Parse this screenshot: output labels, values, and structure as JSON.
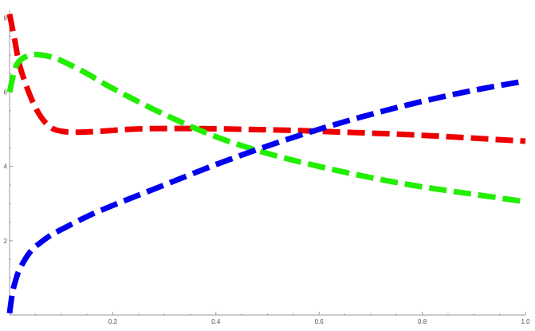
{
  "chart_data": {
    "type": "line",
    "title": "",
    "xlabel": "",
    "ylabel": "",
    "xlim": [
      0,
      1
    ],
    "ylim": [
      0,
      8.2
    ],
    "grid": false,
    "legend": "none",
    "x_ticks": [
      {
        "value": 0.2,
        "label": "0.2"
      },
      {
        "value": 0.4,
        "label": "0.4"
      },
      {
        "value": 0.6,
        "label": "0.6"
      },
      {
        "value": 0.8,
        "label": "0.8"
      },
      {
        "value": 1.0,
        "label": "1.0"
      }
    ],
    "y_ticks": [
      {
        "value": 2,
        "label": "2"
      },
      {
        "value": 4,
        "label": "4"
      },
      {
        "value": 6,
        "label": "6"
      },
      {
        "value": 8,
        "label": "8"
      }
    ],
    "series": [
      {
        "color": "#ee0000",
        "style": "dashed",
        "x": [
          0.0,
          0.01,
          0.02,
          0.04,
          0.06,
          0.08,
          0.1,
          0.13,
          0.18,
          0.25,
          0.35,
          0.45,
          0.55,
          0.65,
          0.75,
          0.85,
          0.95,
          1.0
        ],
        "y": [
          8.1,
          7.4,
          6.7,
          5.9,
          5.35,
          5.05,
          4.95,
          4.92,
          4.95,
          5.01,
          5.02,
          5.0,
          4.97,
          4.92,
          4.87,
          4.8,
          4.72,
          4.68
        ]
      },
      {
        "color": "#22ee00",
        "style": "dashed",
        "x": [
          0.0,
          0.01,
          0.02,
          0.04,
          0.06,
          0.08,
          0.1,
          0.15,
          0.2,
          0.3,
          0.4,
          0.5,
          0.6,
          0.7,
          0.8,
          0.9,
          1.0
        ],
        "y": [
          6.0,
          6.6,
          6.85,
          7.0,
          7.0,
          6.95,
          6.85,
          6.5,
          6.1,
          5.4,
          4.8,
          4.35,
          4.0,
          3.7,
          3.45,
          3.25,
          3.05
        ]
      },
      {
        "color": "#0000ee",
        "style": "dashed",
        "x": [
          0.0,
          0.005,
          0.01,
          0.02,
          0.04,
          0.06,
          0.08,
          0.1,
          0.15,
          0.2,
          0.3,
          0.4,
          0.5,
          0.6,
          0.7,
          0.8,
          0.9,
          1.0
        ],
        "y": [
          0.05,
          0.55,
          0.85,
          1.25,
          1.7,
          1.95,
          2.15,
          2.3,
          2.65,
          2.95,
          3.5,
          4.05,
          4.55,
          5.0,
          5.4,
          5.75,
          6.05,
          6.3
        ]
      }
    ]
  }
}
